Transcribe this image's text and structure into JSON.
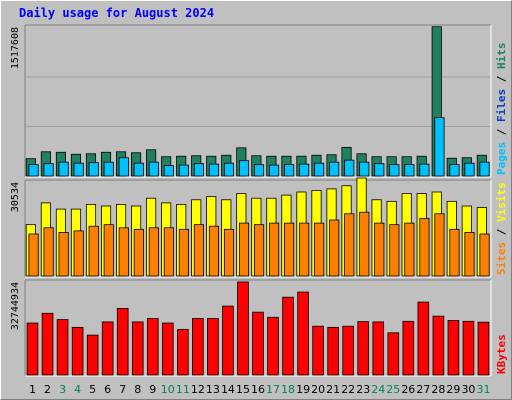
{
  "chart_data": {
    "type": "bar",
    "title": "Daily usage for August 2024",
    "categories": [
      "1",
      "2",
      "3",
      "4",
      "5",
      "6",
      "7",
      "8",
      "9",
      "10",
      "11",
      "12",
      "13",
      "14",
      "15",
      "16",
      "17",
      "18",
      "19",
      "20",
      "21",
      "22",
      "23",
      "24",
      "25",
      "26",
      "27",
      "28",
      "29",
      "30",
      "31"
    ],
    "weekend_days": [
      "3",
      "4",
      "10",
      "11",
      "17",
      "18",
      "24",
      "25",
      "31"
    ],
    "panels": [
      {
        "id": "hits",
        "axis_max_label": "1517608",
        "ymax": 1517608,
        "side_labels": [
          {
            "text": "Pages",
            "color": "#00c0ff"
          },
          {
            "text": " / ",
            "color": "#000000"
          },
          {
            "text": "Files",
            "color": "#0040c0"
          },
          {
            "text": " / ",
            "color": "#000000"
          },
          {
            "text": "Hits",
            "color": "#208060"
          }
        ],
        "series": [
          {
            "name": "Hits",
            "color": "#208060",
            "values": [
              175000,
              245000,
              240000,
              220000,
              225000,
              240000,
              245000,
              235000,
              265000,
              195000,
              200000,
              205000,
              200000,
              210000,
              285000,
              205000,
              200000,
              200000,
              200000,
              210000,
              215000,
              290000,
              225000,
              195000,
              195000,
              195000,
              200000,
              1510000,
              180000,
              185000,
              210000
            ]
          },
          {
            "name": "Files",
            "color": "#0040c0",
            "values": [
              0,
              0,
              0,
              0,
              0,
              0,
              0,
              0,
              0,
              0,
              0,
              0,
              0,
              0,
              0,
              0,
              0,
              0,
              0,
              0,
              0,
              0,
              0,
              0,
              0,
              0,
              0,
              0,
              0,
              0,
              0
            ]
          },
          {
            "name": "Pages",
            "color": "#00c0ff",
            "values": [
              115000,
              125000,
              140000,
              130000,
              135000,
              140000,
              185000,
              130000,
              140000,
              105000,
              110000,
              125000,
              120000,
              130000,
              155000,
              115000,
              110000,
              115000,
              120000,
              130000,
              140000,
              160000,
              140000,
              125000,
              115000,
              115000,
              120000,
              590000,
              115000,
              130000,
              140000
            ]
          }
        ]
      },
      {
        "id": "visits",
        "axis_max_label": "30534",
        "ymax": 30534,
        "side_labels": [
          {
            "text": "Sites",
            "color": "#ff8000"
          },
          {
            "text": " / ",
            "color": "#000000"
          },
          {
            "text": "Visits",
            "color": "#ffff00"
          }
        ],
        "series": [
          {
            "name": "Visits",
            "color": "#ffff00",
            "values": [
              16500,
              23500,
              21500,
              21500,
              23000,
              22500,
              23000,
              22500,
              25000,
              23500,
              23000,
              24500,
              25500,
              24500,
              26500,
              25000,
              25000,
              26000,
              27000,
              27500,
              28000,
              29000,
              31500,
              24500,
              24000,
              26500,
              26500,
              27000,
              24000,
              22500,
              22000
            ]
          },
          {
            "name": "Sites",
            "color": "#ff8000",
            "values": [
              13500,
              15500,
              14000,
              14500,
              16000,
              16500,
              15500,
              15000,
              15500,
              15500,
              15000,
              16500,
              16000,
              15000,
              17000,
              16500,
              17000,
              17000,
              17000,
              17000,
              18000,
              20000,
              20500,
              17000,
              16500,
              17000,
              18500,
              20000,
              15000,
              14000,
              13500
            ]
          }
        ]
      },
      {
        "id": "kbytes",
        "axis_max_label": "32744934",
        "ymax": 32744934,
        "side_labels": [
          {
            "text": "KBytes",
            "color": "#ff0000"
          }
        ],
        "series": [
          {
            "name": "KBytes",
            "color": "#ff0000",
            "values": [
              18100000,
              21500000,
              19300000,
              16600000,
              13900000,
              18500000,
              23200000,
              18500000,
              19700000,
              18100000,
              15900000,
              19700000,
              19700000,
              24000000,
              32400000,
              21900000,
              20100000,
              27100000,
              28900000,
              17000000,
              16600000,
              17000000,
              18600000,
              18500000,
              14700000,
              18700000,
              25400000,
              20500000,
              19000000,
              18700000,
              18400000
            ]
          }
        ]
      }
    ]
  },
  "colors": {
    "background": "#c0c0c0",
    "title": "#0000ff",
    "weekday_label": "#000000",
    "weekend_label": "#00805c",
    "gridline": "#a0a0a0"
  }
}
